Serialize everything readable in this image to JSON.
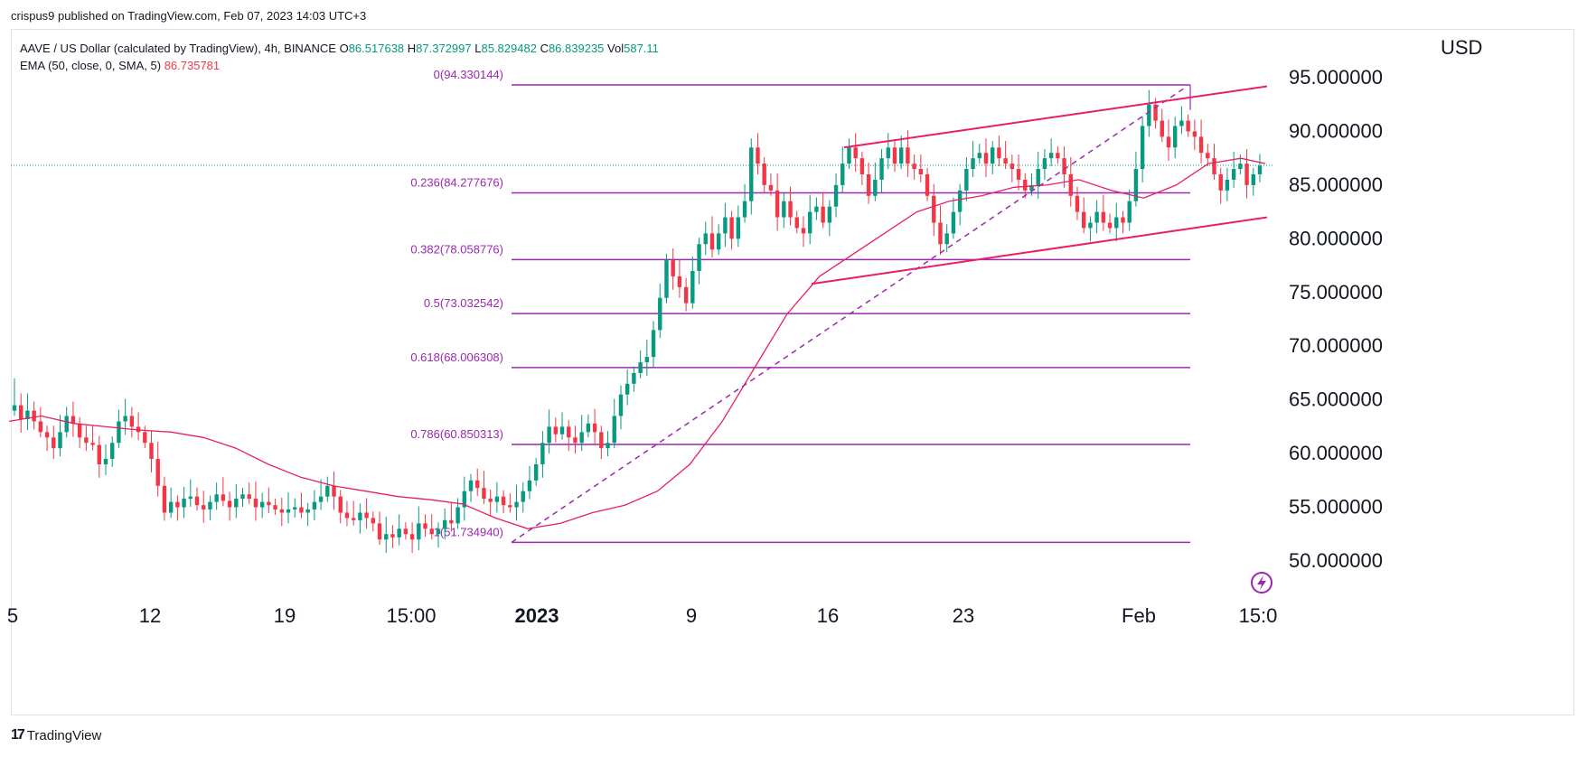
{
  "header": {
    "published_by": "crispus9 published on TradingView.com, Feb 07, 2023 14:03 UTC+3"
  },
  "legend": {
    "symbol_line": "AAVE / US Dollar (calculated by TradingView), 4h, BINANCE",
    "o_label": "O",
    "o_value": "86.517638",
    "h_label": "H",
    "h_value": "87.372997",
    "l_label": "L",
    "l_value": "85.829482",
    "c_label": "C",
    "c_value": "86.839235",
    "vol_label": "Vol",
    "vol_value": "587.11",
    "ema_label": "EMA (50, close, 0, SMA, 5)",
    "ema_value": "86.735781"
  },
  "currency": "USD",
  "footer": {
    "brand": "TradingView",
    "logo": "tradingview-logo-icon"
  },
  "colors": {
    "up": "#089981",
    "down": "#f23645",
    "ema": "#e91e63",
    "fib": "#9c27b0",
    "channel": "#e91e63",
    "text": "#131722",
    "fib_text": "#9c27b0"
  },
  "chart_data": {
    "type": "candlestick",
    "symbol": "AAVE / US Dollar",
    "interval": "4h",
    "y_axis": {
      "label": "USD",
      "range": [
        45,
        97
      ],
      "ticks": [
        50,
        55,
        60,
        65,
        70,
        75,
        80,
        85,
        90,
        95
      ],
      "tick_labels": [
        "50.000000",
        "55.000000",
        "60.000000",
        "65.000000",
        "70.000000",
        "75.000000",
        "80.000000",
        "85.000000",
        "90.000000",
        "95.000000"
      ]
    },
    "x_axis": {
      "tick_labels": [
        "5",
        "12",
        "19",
        "15:00",
        "2023",
        "9",
        "16",
        "23",
        "Feb",
        "15:0"
      ]
    },
    "last_price": 86.839235,
    "fibonacci": [
      {
        "label": "0(94.330144)",
        "level": 94.330144
      },
      {
        "label": "0.236(84.277676)",
        "level": 84.277676
      },
      {
        "label": "0.382(78.058776)",
        "level": 78.058776
      },
      {
        "label": "0.5(73.032542)",
        "level": 73.032542
      },
      {
        "label": "0.618(68.006308)",
        "level": 68.006308
      },
      {
        "label": "0.786(60.850313)",
        "level": 60.850313
      },
      {
        "label": "1(51.734940)",
        "level": 51.73494
      }
    ],
    "ema_path": [
      [
        0,
        63.0
      ],
      [
        20,
        63.5
      ],
      [
        40,
        62.8
      ],
      [
        60,
        62.5
      ],
      [
        80,
        62.2
      ],
      [
        100,
        62.0
      ],
      [
        120,
        61.5
      ],
      [
        140,
        60.5
      ],
      [
        160,
        59.0
      ],
      [
        180,
        57.8
      ],
      [
        200,
        57.0
      ],
      [
        220,
        56.5
      ],
      [
        240,
        56.0
      ],
      [
        260,
        55.7
      ],
      [
        280,
        55.3
      ],
      [
        300,
        54.0
      ],
      [
        320,
        53.0
      ],
      [
        340,
        53.5
      ],
      [
        360,
        54.5
      ],
      [
        380,
        55.2
      ],
      [
        400,
        56.5
      ],
      [
        420,
        59.0
      ],
      [
        440,
        63.0
      ],
      [
        460,
        68.0
      ],
      [
        480,
        73.0
      ],
      [
        500,
        76.5
      ],
      [
        520,
        78.5
      ],
      [
        540,
        80.5
      ],
      [
        560,
        82.5
      ],
      [
        580,
        83.5
      ],
      [
        600,
        84.0
      ],
      [
        620,
        84.8
      ],
      [
        640,
        85.0
      ],
      [
        660,
        85.5
      ],
      [
        680,
        84.5
      ],
      [
        700,
        83.8
      ],
      [
        720,
        85.0
      ],
      [
        740,
        87.0
      ],
      [
        760,
        87.5
      ],
      [
        775,
        87.0
      ]
    ],
    "candles": [
      {
        "c": 64.5,
        "h": 67.0
      },
      {
        "c": 63.2
      },
      {
        "c": 64.0
      },
      {
        "c": 63.0
      },
      {
        "c": 62.0
      },
      {
        "c": 61.5
      },
      {
        "c": 60.5
      },
      {
        "c": 62.0
      },
      {
        "c": 63.5
      },
      {
        "c": 62.8
      },
      {
        "c": 61.5
      },
      {
        "c": 61.0
      },
      {
        "c": 60.8
      },
      {
        "c": 59.0
      },
      {
        "c": 59.5
      },
      {
        "c": 61.0
      },
      {
        "c": 63.0
      },
      {
        "c": 63.5
      },
      {
        "c": 62.5
      },
      {
        "c": 62.0
      },
      {
        "c": 61.0
      },
      {
        "c": 59.5
      },
      {
        "c": 57.0
      },
      {
        "c": 54.5
      },
      {
        "c": 55.5
      },
      {
        "c": 55.0
      },
      {
        "c": 55.8
      },
      {
        "c": 56.0
      },
      {
        "c": 55.2
      },
      {
        "c": 54.8
      },
      {
        "c": 55.5
      },
      {
        "c": 56.2
      },
      {
        "c": 55.6
      },
      {
        "c": 55.0
      },
      {
        "c": 55.8
      },
      {
        "c": 56.2
      },
      {
        "c": 55.8
      },
      {
        "c": 55.0
      },
      {
        "c": 55.5
      },
      {
        "c": 55.2
      },
      {
        "c": 54.8
      },
      {
        "c": 54.5
      },
      {
        "c": 54.8
      },
      {
        "c": 55.0
      },
      {
        "c": 54.5
      },
      {
        "c": 54.8
      },
      {
        "c": 55.5
      },
      {
        "c": 56.0
      },
      {
        "c": 57.0
      },
      {
        "c": 56.0
      },
      {
        "c": 54.5
      },
      {
        "c": 54.0
      },
      {
        "c": 53.8
      },
      {
        "c": 54.5
      },
      {
        "c": 54.0
      },
      {
        "c": 53.5
      },
      {
        "c": 52.0
      },
      {
        "c": 52.5
      },
      {
        "c": 52.2
      },
      {
        "c": 53.0
      },
      {
        "c": 52.5
      },
      {
        "c": 52.0
      },
      {
        "c": 53.5
      },
      {
        "c": 53.0
      },
      {
        "c": 52.5
      },
      {
        "c": 53.0
      },
      {
        "c": 53.8
      },
      {
        "c": 53.5
      },
      {
        "c": 55.0
      },
      {
        "c": 56.5
      },
      {
        "c": 57.5
      },
      {
        "c": 56.8
      },
      {
        "c": 55.8
      },
      {
        "c": 55.5
      },
      {
        "c": 56.0
      },
      {
        "c": 55.2
      },
      {
        "c": 55.0
      },
      {
        "c": 55.5
      },
      {
        "c": 56.5
      },
      {
        "c": 57.5
      },
      {
        "c": 59.0
      },
      {
        "c": 61.0
      },
      {
        "c": 62.5
      },
      {
        "c": 61.8
      },
      {
        "c": 62.5
      },
      {
        "c": 61.5
      },
      {
        "c": 61.0
      },
      {
        "c": 62.0
      },
      {
        "c": 62.8
      },
      {
        "c": 62.0
      },
      {
        "c": 60.5
      },
      {
        "c": 61.0
      },
      {
        "c": 63.5
      },
      {
        "c": 65.5
      },
      {
        "c": 66.5
      },
      {
        "c": 67.5
      },
      {
        "c": 68.5
      },
      {
        "c": 69.0
      },
      {
        "c": 71.5
      },
      {
        "c": 74.5
      },
      {
        "c": 78.0
      },
      {
        "c": 76.5
      },
      {
        "c": 75.5
      },
      {
        "c": 74.0
      },
      {
        "c": 77.0
      },
      {
        "c": 79.5
      },
      {
        "c": 80.5
      },
      {
        "c": 79.0
      },
      {
        "c": 80.5
      },
      {
        "c": 82.0
      },
      {
        "c": 80.0
      },
      {
        "c": 82.0
      },
      {
        "c": 83.5
      },
      {
        "c": 88.5
      },
      {
        "c": 87.0
      },
      {
        "c": 85.0
      },
      {
        "c": 84.5
      },
      {
        "c": 82.0
      },
      {
        "c": 83.5
      },
      {
        "c": 82.0
      },
      {
        "c": 81.0
      },
      {
        "c": 80.5
      },
      {
        "c": 82.5
      },
      {
        "c": 83.0
      },
      {
        "c": 81.5
      },
      {
        "c": 83.0
      },
      {
        "c": 85.0
      },
      {
        "c": 87.0
      },
      {
        "c": 88.5
      },
      {
        "c": 87.5
      },
      {
        "c": 86.0
      },
      {
        "c": 84.0
      },
      {
        "c": 85.5
      },
      {
        "c": 87.5
      },
      {
        "c": 88.5
      },
      {
        "c": 87.0
      },
      {
        "c": 88.5
      },
      {
        "c": 87.0
      },
      {
        "c": 86.5
      },
      {
        "c": 86.0
      },
      {
        "c": 84.0
      },
      {
        "c": 81.5
      },
      {
        "c": 79.5
      },
      {
        "c": 80.5
      },
      {
        "c": 82.5
      },
      {
        "c": 84.5
      },
      {
        "c": 86.5
      },
      {
        "c": 87.5
      },
      {
        "c": 88.0
      },
      {
        "c": 87.0
      },
      {
        "c": 88.5
      },
      {
        "c": 87.5
      },
      {
        "c": 87.0
      },
      {
        "c": 86.5
      },
      {
        "c": 85.5
      },
      {
        "c": 84.5
      },
      {
        "c": 85.0
      },
      {
        "c": 86.5
      },
      {
        "c": 87.5
      },
      {
        "c": 88.0
      },
      {
        "c": 87.5
      },
      {
        "c": 86.0
      },
      {
        "c": 84.0
      },
      {
        "c": 82.5
      },
      {
        "c": 81.0
      },
      {
        "c": 81.5
      },
      {
        "c": 82.5
      },
      {
        "c": 81.5
      },
      {
        "c": 81.0
      },
      {
        "c": 82.0
      },
      {
        "c": 81.5
      },
      {
        "c": 83.5
      },
      {
        "c": 86.5
      },
      {
        "c": 90.5
      },
      {
        "c": 92.5
      },
      {
        "c": 91.0
      },
      {
        "c": 89.5
      },
      {
        "c": 88.5
      },
      {
        "c": 90.5
      },
      {
        "c": 91.0
      },
      {
        "c": 90.0
      },
      {
        "c": 89.5
      },
      {
        "c": 88.0
      },
      {
        "c": 87.5
      },
      {
        "c": 86.0
      },
      {
        "c": 84.5
      },
      {
        "c": 85.5
      },
      {
        "c": 86.5
      },
      {
        "c": 87.0
      },
      {
        "c": 85.0
      },
      {
        "c": 86.0
      },
      {
        "c": 86.8
      }
    ],
    "channel_upper": [
      [
        16.2,
        88.5
      ],
      [
        8.2,
        94.2
      ]
    ],
    "channel_lower": [
      [
        14.9,
        75.8
      ],
      [
        8.2,
        82.0
      ]
    ]
  }
}
